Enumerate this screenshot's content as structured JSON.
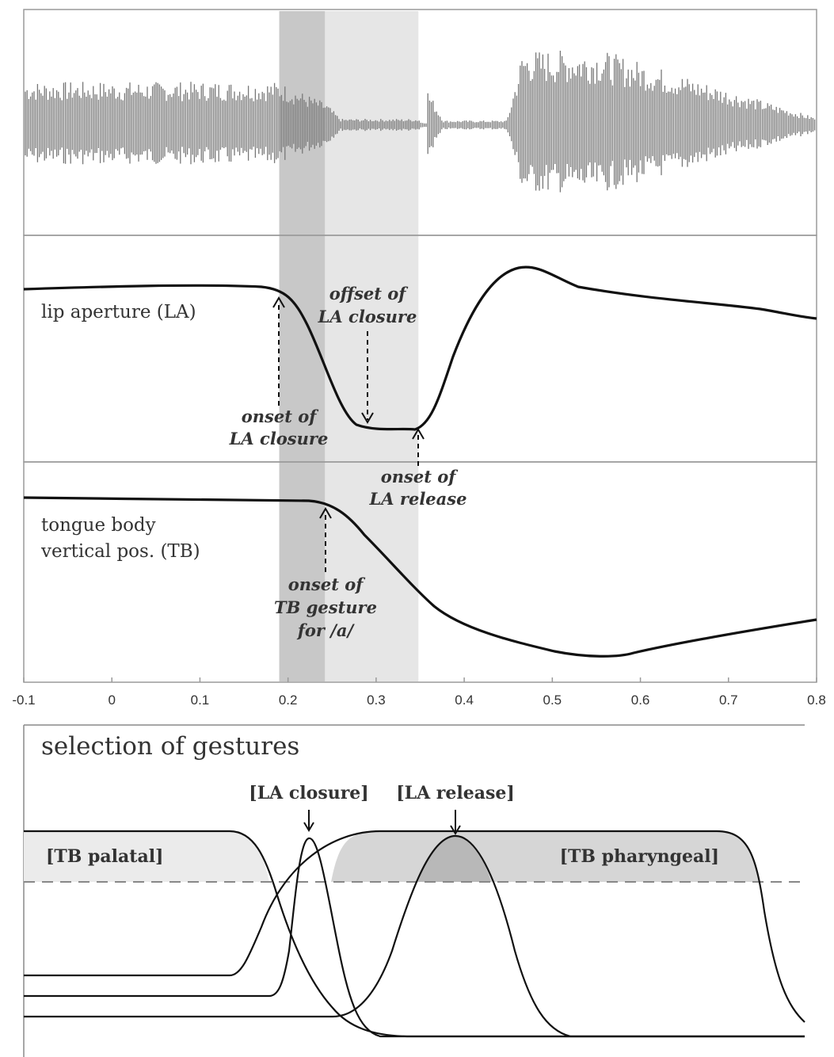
{
  "upper_figure": {
    "x_axis": {
      "range": [
        -0.1,
        0.8
      ],
      "ticks": [
        "-0.1",
        "0",
        "0.1",
        "0.2",
        "0.3",
        "0.4",
        "0.5",
        "0.6",
        "0.7",
        "0.8"
      ]
    },
    "shaded_intervals": [
      {
        "start": 0.19,
        "end": 0.242,
        "tone": "dark"
      },
      {
        "start": 0.242,
        "end": 0.348,
        "tone": "light"
      }
    ],
    "panels": {
      "waveform": {
        "label": ""
      },
      "lip_aperture": {
        "label": "lip aperture (LA)"
      },
      "tongue_body": {
        "label_line1": "tongue body",
        "label_line2": "vertical pos. (TB)"
      }
    },
    "annotations": {
      "onset_la_closure": {
        "line1": "onset of",
        "line2": "LA closure"
      },
      "offset_la_closure": {
        "line1": "offset of",
        "line2": "LA closure"
      },
      "onset_la_release": {
        "line1": "onset of",
        "line2": "LA release"
      },
      "onset_tb_gesture": {
        "line1": "onset of",
        "line2": "TB gesture",
        "line3": "for /a/"
      }
    },
    "colors": {
      "dark_band": "#c8c8c8",
      "light_band": "#e6e6e6",
      "curve": "#111111",
      "waveform": "#777777"
    }
  },
  "lower_figure": {
    "title": "selection of gestures",
    "gestures": {
      "la_closure": "[LA closure]",
      "la_release": "[LA release]",
      "tb_palatal": "[TB palatal]",
      "tb_pharyngeal": "[TB pharyngeal]"
    },
    "threshold": "dashed"
  }
}
